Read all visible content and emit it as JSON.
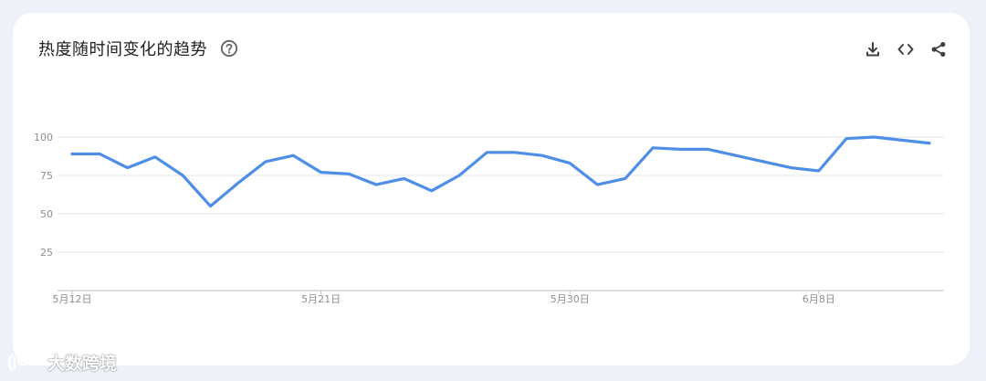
{
  "card": {
    "title": "热度随时间变化的趋势",
    "help_icon": "help-circle-icon",
    "actions": [
      {
        "name": "download-button",
        "icon": "download-icon"
      },
      {
        "name": "embed-button",
        "icon": "code-icon"
      },
      {
        "name": "share-button",
        "icon": "share-icon"
      }
    ]
  },
  "watermark": {
    "text": "大数跨境"
  },
  "colors": {
    "line": "#4f8ee8",
    "grid": "#e6e6e6",
    "axis": "#bfbfbf",
    "label": "#8a8f95"
  },
  "chart_data": {
    "type": "line",
    "title": "热度随时间变化的趋势",
    "xlabel": "",
    "ylabel": "",
    "ylim": [
      0,
      100
    ],
    "yticks": [
      25,
      50,
      75,
      100
    ],
    "grid": true,
    "x_tick_labels": [
      {
        "label": "5月12日",
        "index": 0
      },
      {
        "label": "5月21日",
        "index": 9
      },
      {
        "label": "5月30日",
        "index": 18
      },
      {
        "label": "6月8日",
        "index": 27
      }
    ],
    "x": [
      "5月12日",
      "5月13日",
      "5月14日",
      "5月15日",
      "5月16日",
      "5月17日",
      "5月18日",
      "5月19日",
      "5月20日",
      "5月21日",
      "5月22日",
      "5月23日",
      "5月24日",
      "5月25日",
      "5月26日",
      "5月27日",
      "5月28日",
      "5月29日",
      "5月30日",
      "5月31日",
      "6月1日",
      "6月2日",
      "6月3日",
      "6月4日",
      "6月5日",
      "6月6日",
      "6月7日",
      "6月8日",
      "6月9日",
      "6月10日",
      "6月11日",
      "6月12日"
    ],
    "series": [
      {
        "values": [
          89,
          89,
          80,
          87,
          75,
          55,
          70,
          84,
          88,
          77,
          76,
          69,
          73,
          65,
          75,
          90,
          90,
          88,
          83,
          69,
          73,
          93,
          92,
          92,
          88,
          84,
          80,
          78,
          99,
          100,
          98,
          96
        ]
      }
    ]
  }
}
